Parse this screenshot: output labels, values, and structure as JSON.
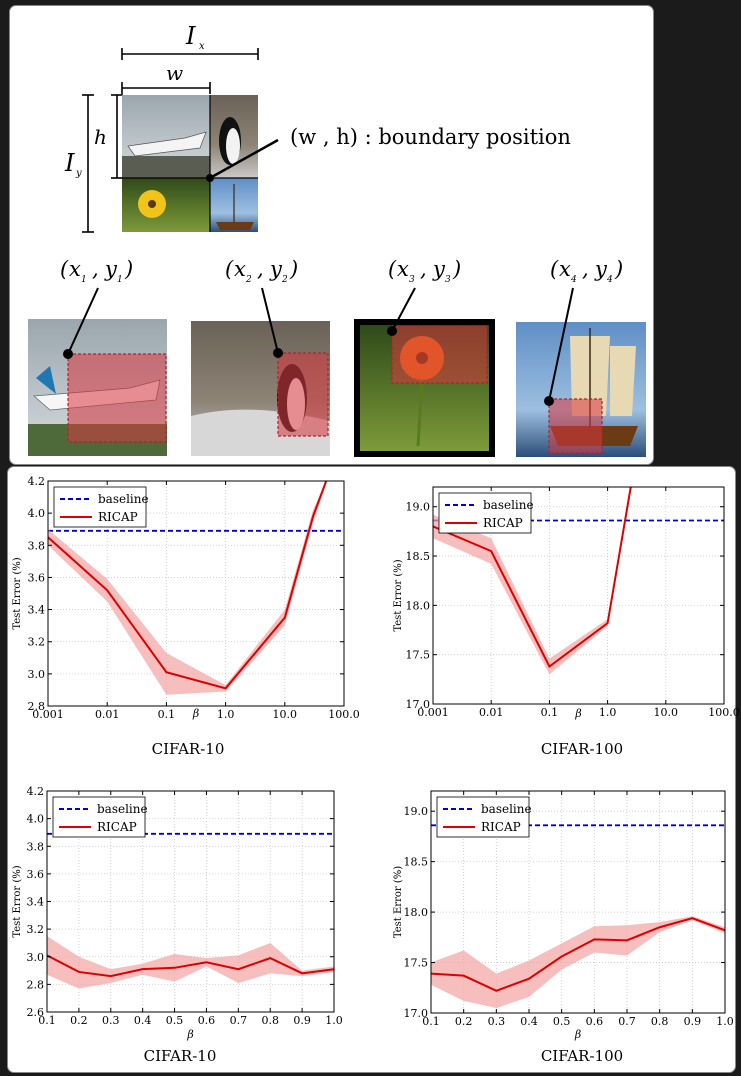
{
  "diagram": {
    "ix_label": "I",
    "ix_sub": "x",
    "iy_label": "I",
    "iy_sub": "y",
    "w_label": "w",
    "h_label": "h",
    "boundary_label": "(w , h) : boundary position",
    "coords": [
      {
        "x": "x",
        "xs": "1",
        "y": "y",
        "ys": "1"
      },
      {
        "x": "x",
        "xs": "2",
        "y": "y",
        "ys": "2"
      },
      {
        "x": "x",
        "xs": "3",
        "y": "y",
        "ys": "3"
      },
      {
        "x": "x",
        "xs": "4",
        "y": "y",
        "ys": "4"
      }
    ],
    "colors": {
      "highlight": "#d9363e",
      "frame": "#000000"
    }
  },
  "chart_data": [
    {
      "type": "line",
      "title": "CIFAR-10",
      "xlabel": "β",
      "ylabel": "Test Error (%)",
      "xscale": "log",
      "x": [
        0.001,
        0.01,
        0.1,
        1.0,
        10.0,
        100.0
      ],
      "xtick_labels": [
        "0.001",
        "0.01",
        "0.1",
        "1.0",
        "10.0",
        "100.0"
      ],
      "ylim": [
        2.8,
        4.2
      ],
      "yticks": [
        2.8,
        3.0,
        3.2,
        3.4,
        3.6,
        3.8,
        4.0,
        4.2
      ],
      "ytick_labels": [
        "2.8",
        "3.0",
        "3.2",
        "3.4",
        "3.6",
        "3.8",
        "4.0",
        "4.2"
      ],
      "series": [
        {
          "name": "baseline",
          "style": "dashed",
          "color": "#0000cc",
          "x": [
            0.001,
            100.0
          ],
          "values": [
            3.89,
            3.89
          ]
        },
        {
          "name": "RICAP",
          "style": "solid",
          "color": "#dd0000",
          "x": [
            0.001,
            0.01,
            0.1,
            1.0,
            10.0,
            30.0,
            50.0
          ],
          "values": [
            3.85,
            3.52,
            3.01,
            2.91,
            3.35,
            3.98,
            4.2
          ],
          "lower": [
            3.8,
            3.45,
            2.87,
            2.89,
            3.3,
            3.94,
            4.18
          ],
          "upper": [
            3.9,
            3.59,
            3.13,
            2.93,
            3.4,
            4.02,
            4.2
          ]
        }
      ],
      "legend": "top-left",
      "grid": true
    },
    {
      "type": "line",
      "title": "CIFAR-100",
      "xlabel": "β",
      "ylabel": "Test Error (%)",
      "xscale": "log",
      "x": [
        0.001,
        0.01,
        0.1,
        1.0,
        10.0,
        100.0
      ],
      "xtick_labels": [
        "0.001",
        "0.01",
        "0.1",
        "1.0",
        "10.0",
        "100.0"
      ],
      "ylim": [
        17.0,
        19.2
      ],
      "yticks": [
        17.0,
        17.5,
        18.0,
        18.5,
        19.0
      ],
      "ytick_labels": [
        "17.0",
        "17.5",
        "18.0",
        "18.5",
        "19.0"
      ],
      "series": [
        {
          "name": "baseline",
          "style": "dashed",
          "color": "#0000cc",
          "x": [
            0.001,
            100.0
          ],
          "values": [
            18.86,
            18.86
          ]
        },
        {
          "name": "RICAP",
          "style": "solid",
          "color": "#dd0000",
          "x": [
            0.001,
            0.01,
            0.1,
            1.0,
            2.5
          ],
          "values": [
            18.8,
            18.55,
            17.38,
            17.82,
            19.2
          ],
          "lower": [
            18.68,
            18.42,
            17.3,
            17.79,
            19.15
          ],
          "upper": [
            18.92,
            18.68,
            17.46,
            17.86,
            19.2
          ]
        }
      ],
      "legend": "top-left",
      "grid": true
    },
    {
      "type": "line",
      "title": "CIFAR-10",
      "xlabel": "β",
      "ylabel": "Test Error (%)",
      "xscale": "linear",
      "x": [
        0.1,
        0.2,
        0.3,
        0.4,
        0.5,
        0.6,
        0.7,
        0.8,
        0.9,
        1.0
      ],
      "xtick_labels": [
        "0.1",
        "0.2",
        "0.3",
        "0.4",
        "0.5",
        "0.6",
        "0.7",
        "0.8",
        "0.9",
        "1.0"
      ],
      "ylim": [
        2.6,
        4.2
      ],
      "yticks": [
        2.6,
        2.8,
        3.0,
        3.2,
        3.4,
        3.6,
        3.8,
        4.0,
        4.2
      ],
      "ytick_labels": [
        "2.6",
        "2.8",
        "3.0",
        "3.2",
        "3.4",
        "3.6",
        "3.8",
        "4.0",
        "4.2"
      ],
      "series": [
        {
          "name": "baseline",
          "style": "dashed",
          "color": "#0000cc",
          "x": [
            0.1,
            1.0
          ],
          "values": [
            3.89,
            3.89
          ]
        },
        {
          "name": "RICAP",
          "style": "solid",
          "color": "#dd0000",
          "x": [
            0.1,
            0.2,
            0.3,
            0.4,
            0.5,
            0.6,
            0.7,
            0.8,
            0.9,
            1.0
          ],
          "values": [
            3.01,
            2.89,
            2.86,
            2.91,
            2.92,
            2.96,
            2.91,
            2.99,
            2.88,
            2.91
          ],
          "lower": [
            2.87,
            2.77,
            2.81,
            2.87,
            2.82,
            2.93,
            2.81,
            2.88,
            2.86,
            2.89
          ],
          "upper": [
            3.15,
            3.0,
            2.91,
            2.95,
            3.02,
            2.99,
            3.01,
            3.1,
            2.9,
            2.93
          ]
        }
      ],
      "legend": "top-left",
      "grid": true
    },
    {
      "type": "line",
      "title": "CIFAR-100",
      "xlabel": "β",
      "ylabel": "Test Error (%)",
      "xscale": "linear",
      "x": [
        0.1,
        0.2,
        0.3,
        0.4,
        0.5,
        0.6,
        0.7,
        0.8,
        0.9,
        1.0
      ],
      "xtick_labels": [
        "0.1",
        "0.2",
        "0.3",
        "0.4",
        "0.5",
        "0.6",
        "0.7",
        "0.8",
        "0.9",
        "1.0"
      ],
      "ylim": [
        17.0,
        19.2
      ],
      "yticks": [
        17.0,
        17.5,
        18.0,
        18.5,
        19.0
      ],
      "ytick_labels": [
        "17.0",
        "17.5",
        "18.0",
        "18.5",
        "19.0"
      ],
      "series": [
        {
          "name": "baseline",
          "style": "dashed",
          "color": "#0000cc",
          "x": [
            0.1,
            1.0
          ],
          "values": [
            18.86,
            18.86
          ]
        },
        {
          "name": "RICAP",
          "style": "solid",
          "color": "#dd0000",
          "x": [
            0.1,
            0.2,
            0.3,
            0.4,
            0.5,
            0.6,
            0.7,
            0.8,
            0.9,
            1.0
          ],
          "values": [
            17.39,
            17.37,
            17.22,
            17.34,
            17.56,
            17.73,
            17.72,
            17.85,
            17.94,
            17.82
          ],
          "lower": [
            17.28,
            17.12,
            17.05,
            17.16,
            17.43,
            17.6,
            17.57,
            17.8,
            17.92,
            17.79
          ],
          "upper": [
            17.5,
            17.62,
            17.39,
            17.52,
            17.69,
            17.86,
            17.87,
            17.9,
            17.96,
            17.85
          ]
        }
      ],
      "legend": "top-left",
      "grid": true
    }
  ]
}
